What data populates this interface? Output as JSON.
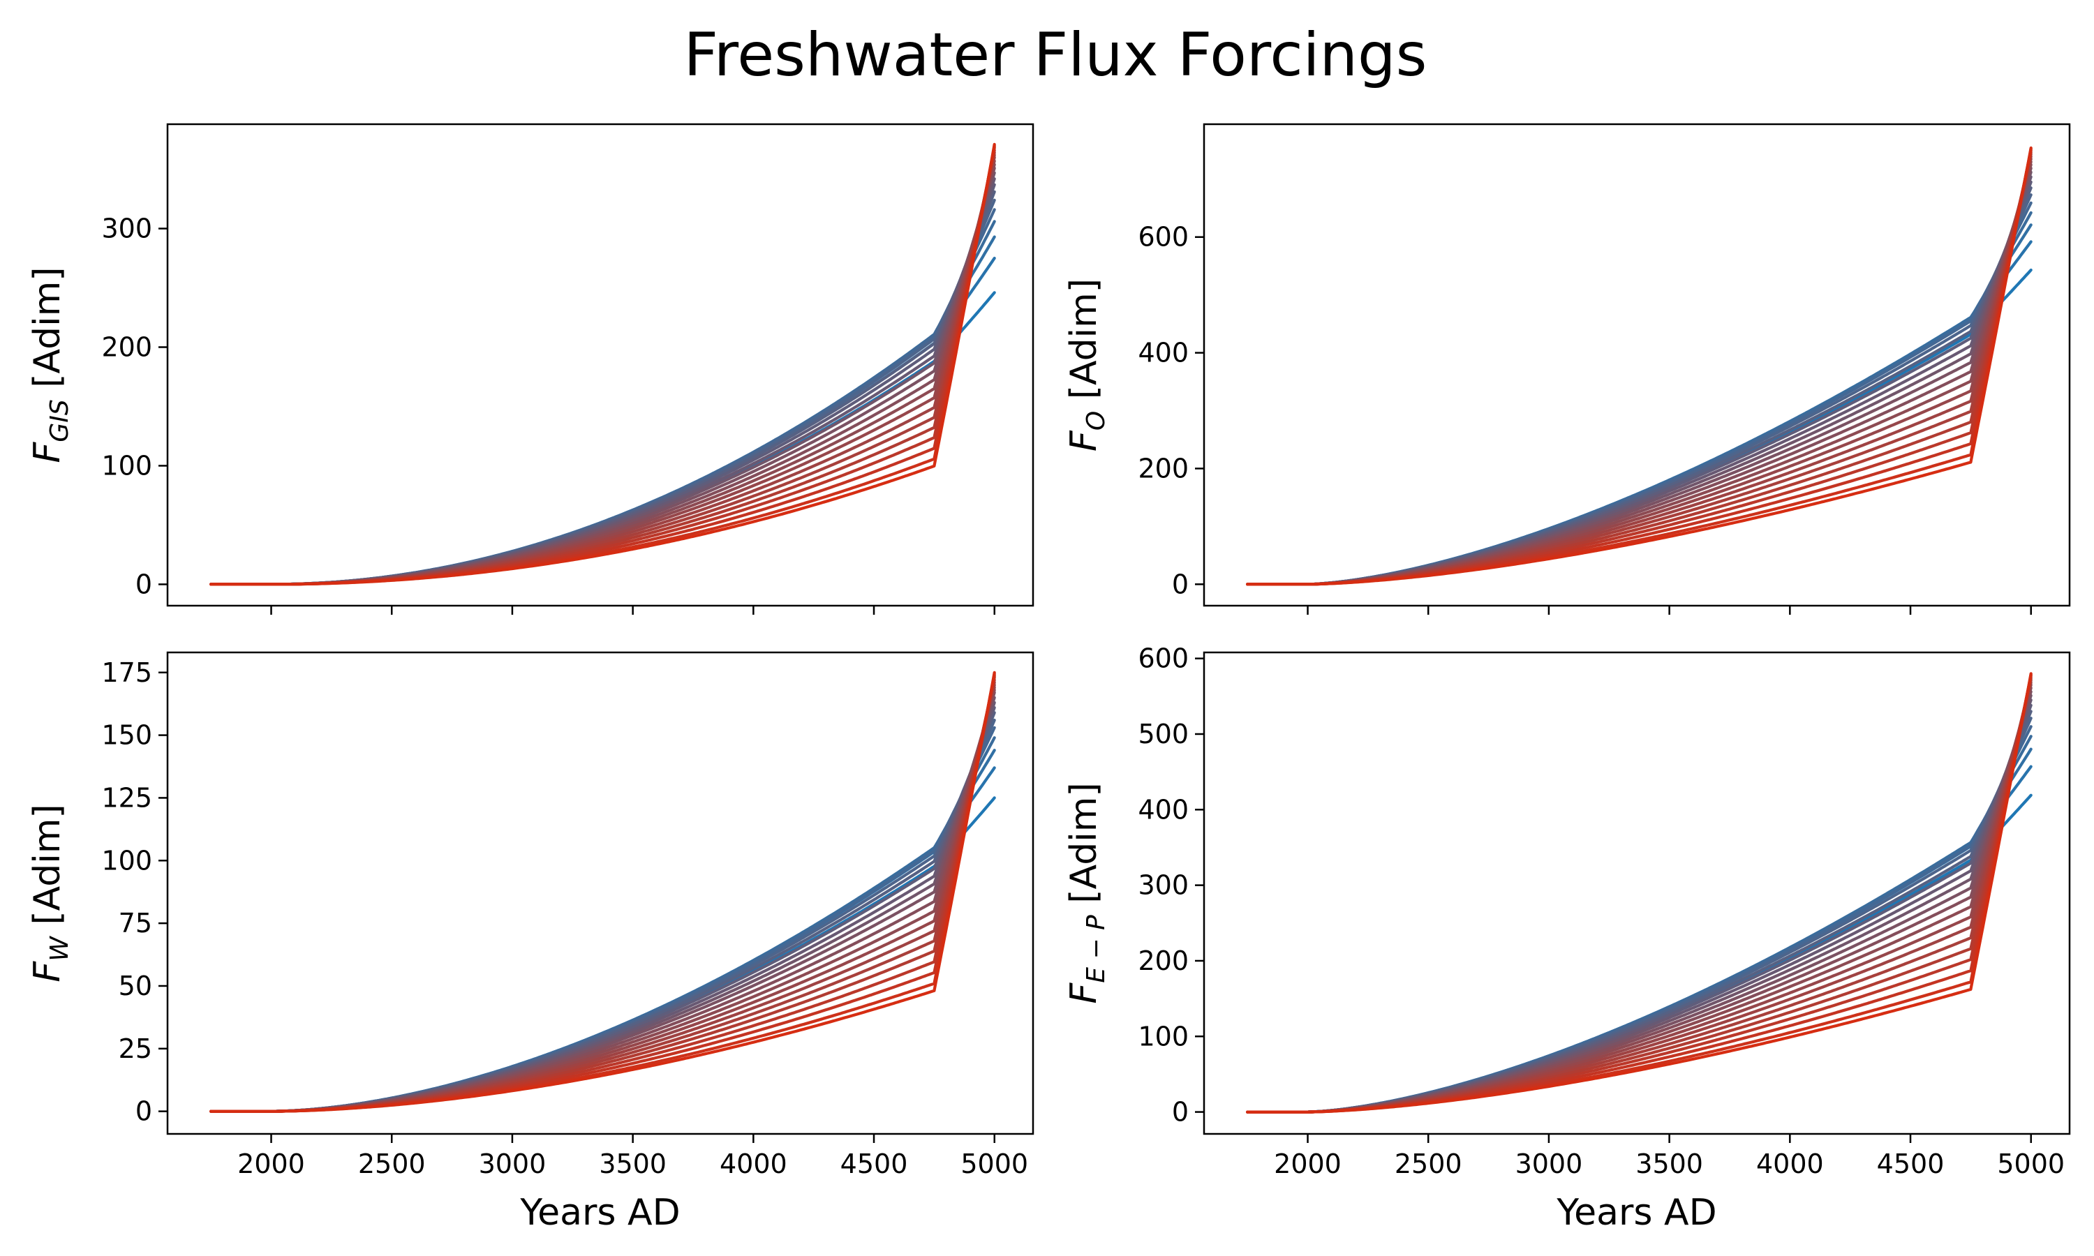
{
  "figure": {
    "title": "Freshwater Flux Forcings"
  },
  "colors": {
    "start": "#1f77b4",
    "end": "#d62d12"
  },
  "chart_data": [
    {
      "type": "line",
      "id": "gis",
      "ylabel_main": "F",
      "ylabel_sub": "GIS",
      "ylabel_unit": "[Adim]",
      "xlabel": "",
      "x_start": 1750,
      "x_end": 5000,
      "xlim": [
        1570,
        5160
      ],
      "ylim": [
        -18,
        388
      ],
      "xticks": [
        2000,
        2500,
        3000,
        3500,
        4000,
        4500,
        5000
      ],
      "show_xtick_labels": false,
      "yticks": [
        0,
        100,
        200,
        300
      ],
      "ytick_labels": [
        "0",
        "100",
        "200",
        "300"
      ],
      "series_final_values": [
        246,
        275,
        293,
        306,
        316,
        324,
        331,
        337,
        342,
        347,
        351,
        354,
        357,
        360,
        362,
        364,
        366,
        368,
        369,
        370,
        371
      ],
      "series_knee_fraction": [
        0.09,
        0.12,
        0.15,
        0.18,
        0.21,
        0.24,
        0.27,
        0.3,
        0.33,
        0.36,
        0.39,
        0.42,
        0.45,
        0.48,
        0.51,
        0.54,
        0.57,
        0.6,
        0.63,
        0.66,
        0.68
      ],
      "curve_exponent": 2.0
    },
    {
      "type": "line",
      "id": "o",
      "ylabel_main": "F",
      "ylabel_sub": "O",
      "ylabel_unit": "[Adim]",
      "xlabel": "",
      "x_start": 1750,
      "x_end": 5000,
      "xlim": [
        1570,
        5160
      ],
      "ylim": [
        -37,
        795
      ],
      "xticks": [
        2000,
        2500,
        3000,
        3500,
        4000,
        4500,
        5000
      ],
      "show_xtick_labels": false,
      "yticks": [
        0,
        200,
        400,
        600
      ],
      "ytick_labels": [
        "0",
        "200",
        "400",
        "600"
      ],
      "series_final_values": [
        543,
        592,
        621,
        642,
        659,
        673,
        685,
        695,
        704,
        712,
        719,
        725,
        730,
        735,
        739,
        743,
        746,
        749,
        751,
        753,
        754
      ],
      "series_knee_fraction": [
        0.09,
        0.12,
        0.15,
        0.18,
        0.21,
        0.24,
        0.27,
        0.3,
        0.33,
        0.36,
        0.39,
        0.42,
        0.45,
        0.48,
        0.51,
        0.54,
        0.57,
        0.6,
        0.63,
        0.66,
        0.68
      ],
      "curve_exponent": 1.55
    },
    {
      "type": "line",
      "id": "w",
      "ylabel_main": "F",
      "ylabel_sub": "W",
      "ylabel_unit": "[Adim]",
      "xlabel": "Years AD",
      "x_start": 1750,
      "x_end": 5000,
      "xlim": [
        1570,
        5160
      ],
      "ylim": [
        -9,
        183
      ],
      "xticks": [
        2000,
        2500,
        3000,
        3500,
        4000,
        4500,
        5000
      ],
      "show_xtick_labels": true,
      "xtick_labels": [
        "2000",
        "2500",
        "3000",
        "3500",
        "4000",
        "4500",
        "5000"
      ],
      "yticks": [
        0,
        25,
        50,
        75,
        100,
        125,
        150,
        175
      ],
      "ytick_labels": [
        "0",
        "25",
        "50",
        "75",
        "100",
        "125",
        "150",
        "175"
      ],
      "series_final_values": [
        125,
        137,
        144,
        149,
        153,
        156,
        159,
        161,
        163,
        165,
        167,
        168,
        169,
        170,
        171,
        172,
        173,
        173.5,
        174,
        174.5,
        175
      ],
      "series_knee_fraction": [
        0.09,
        0.12,
        0.15,
        0.18,
        0.21,
        0.24,
        0.27,
        0.3,
        0.33,
        0.36,
        0.39,
        0.42,
        0.45,
        0.48,
        0.51,
        0.54,
        0.57,
        0.6,
        0.63,
        0.66,
        0.68
      ],
      "curve_exponent": 1.75
    },
    {
      "type": "line",
      "id": "ep",
      "ylabel_main": "F",
      "ylabel_sub": "E − P",
      "ylabel_unit": "[Adim]",
      "xlabel": "Years AD",
      "x_start": 1750,
      "x_end": 5000,
      "xlim": [
        1570,
        5160
      ],
      "ylim": [
        -29,
        608
      ],
      "xticks": [
        2000,
        2500,
        3000,
        3500,
        4000,
        4500,
        5000
      ],
      "show_xtick_labels": true,
      "xtick_labels": [
        "2000",
        "2500",
        "3000",
        "3500",
        "4000",
        "4500",
        "5000"
      ],
      "yticks": [
        0,
        100,
        200,
        300,
        400,
        500,
        600
      ],
      "ytick_labels": [
        "0",
        "100",
        "200",
        "300",
        "400",
        "500",
        "600"
      ],
      "series_final_values": [
        419,
        457,
        480,
        497,
        510,
        521,
        530,
        538,
        545,
        551,
        556,
        561,
        565,
        568,
        571,
        573,
        575,
        577,
        578,
        579,
        580
      ],
      "series_knee_fraction": [
        0.09,
        0.12,
        0.15,
        0.18,
        0.21,
        0.24,
        0.27,
        0.3,
        0.33,
        0.36,
        0.39,
        0.42,
        0.45,
        0.48,
        0.51,
        0.54,
        0.57,
        0.6,
        0.63,
        0.66,
        0.68
      ],
      "curve_exponent": 1.55
    }
  ]
}
